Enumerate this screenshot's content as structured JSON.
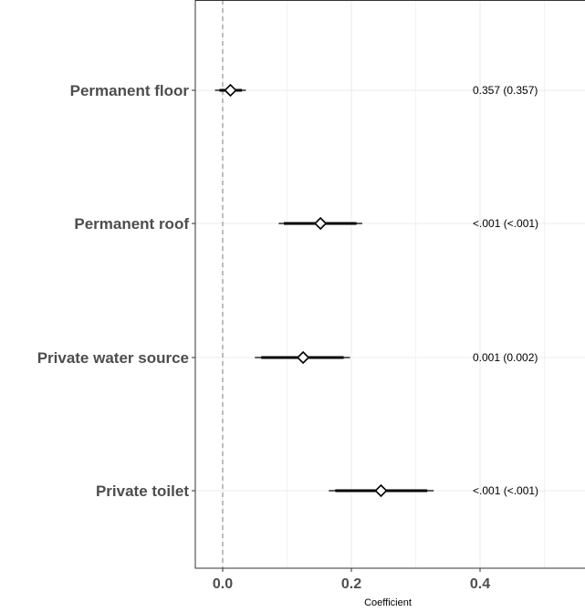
{
  "chart_data": {
    "type": "forest",
    "xlabel": "Coefficient",
    "ylabel": "",
    "title": "",
    "xlim": [
      -0.04,
      0.56
    ],
    "xticks": [
      0.0,
      0.2,
      0.4
    ],
    "xtick_labels": [
      "0.0",
      "0.2",
      "0.4"
    ],
    "minor_gridlines": [
      0.1,
      0.3,
      0.5
    ],
    "reference_line": 0.0,
    "grid": true,
    "rows": [
      {
        "label": "Permanent floor",
        "estimate": 0.012,
        "ci_inner": [
          -0.005,
          0.03
        ],
        "ci_outer": [
          -0.012,
          0.036
        ],
        "annotation": "0.357 (0.357)"
      },
      {
        "label": "Permanent roof",
        "estimate": 0.152,
        "ci_inner": [
          0.095,
          0.208
        ],
        "ci_outer": [
          0.087,
          0.217
        ],
        "annotation": "<.001 (<.001)"
      },
      {
        "label": "Private water source",
        "estimate": 0.125,
        "ci_inner": [
          0.06,
          0.188
        ],
        "ci_outer": [
          0.05,
          0.198
        ],
        "annotation": "0.001 (0.002)"
      },
      {
        "label": "Private toilet",
        "estimate": 0.246,
        "ci_inner": [
          0.175,
          0.318
        ],
        "ci_outer": [
          0.165,
          0.328
        ],
        "annotation": "<.001 (<.001)"
      }
    ]
  }
}
